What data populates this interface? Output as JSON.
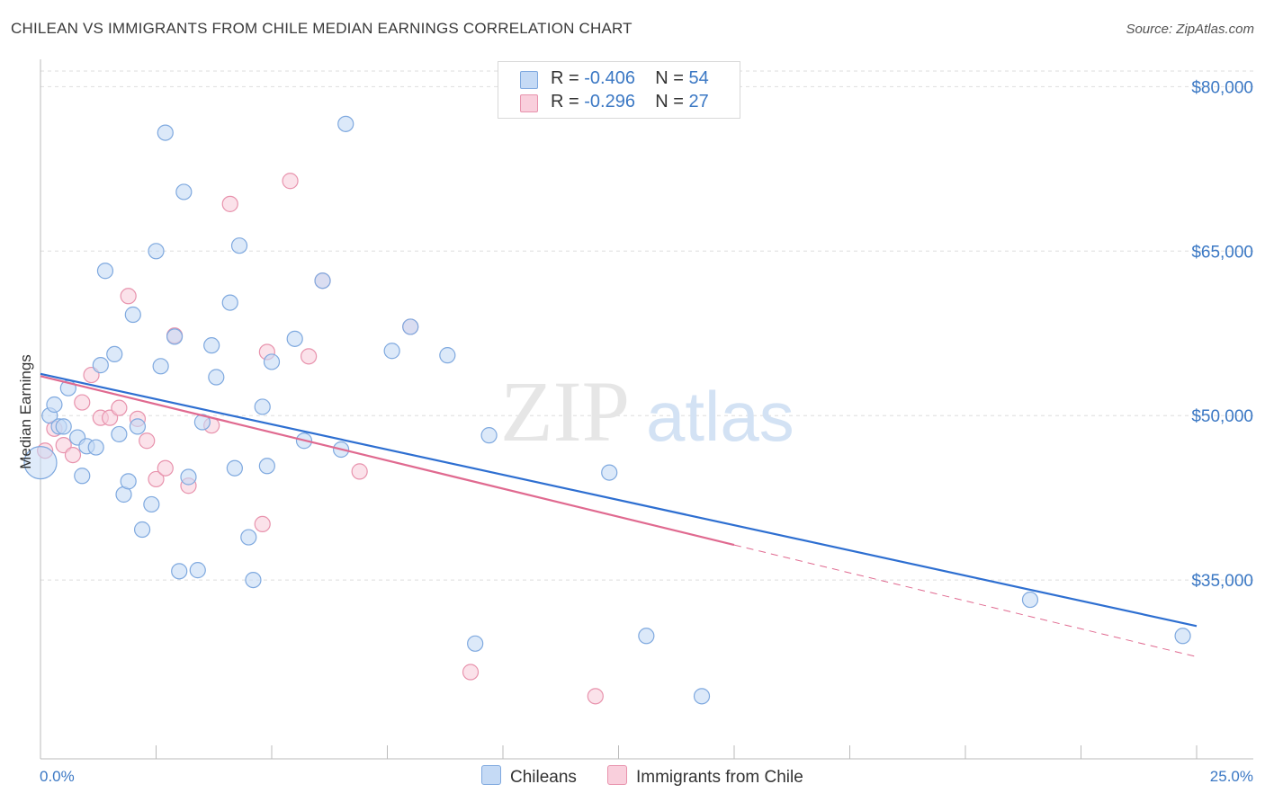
{
  "header": {
    "title": "CHILEAN VS IMMIGRANTS FROM CHILE MEDIAN EARNINGS CORRELATION CHART",
    "source": "Source: ZipAtlas.com"
  },
  "legend": {
    "rows": [
      {
        "r_label": "R = ",
        "r_value": "-0.406",
        "n_label": "N = ",
        "n_value": "54"
      },
      {
        "r_label": "R = ",
        "r_value": " -0.296",
        "n_label": "N = ",
        "n_value": "27"
      }
    ]
  },
  "bottom_legend": {
    "series1": "Chileans",
    "series2": "Immigrants from Chile"
  },
  "colors": {
    "blue_fill": "#c5daf5",
    "blue_stroke": "#7fa9df",
    "blue_line": "#2e6fd1",
    "pink_fill": "#f9cfdc",
    "pink_stroke": "#e893ad",
    "pink_line": "#e06a90",
    "tick_text": "#3b78c4",
    "grid": "#dddddd"
  },
  "chart_data": {
    "type": "scatter",
    "title": "CHILEAN VS IMMIGRANTS FROM CHILE MEDIAN EARNINGS CORRELATION CHART",
    "xlabel": "",
    "ylabel": "Median Earnings",
    "xlim": [
      0,
      25
    ],
    "ylim": [
      20000,
      82000
    ],
    "x_tick_labels": [
      "0.0%",
      "25.0%"
    ],
    "y_ticks": [
      35000,
      50000,
      65000,
      80000
    ],
    "y_tick_labels": [
      "$35,000",
      "$50,000",
      "$65,000",
      "$80,000"
    ],
    "grid": true,
    "legend_position": "top-center",
    "series": [
      {
        "name": "Chileans",
        "stats": {
          "r": -0.406,
          "n": 54
        },
        "points": [
          [
            0.0,
            45700
          ],
          [
            0.2,
            50000
          ],
          [
            0.3,
            51000
          ],
          [
            0.4,
            49000
          ],
          [
            0.5,
            49000
          ],
          [
            0.6,
            52500
          ],
          [
            0.8,
            48000
          ],
          [
            0.9,
            44500
          ],
          [
            1.0,
            47200
          ],
          [
            1.2,
            47100
          ],
          [
            1.3,
            54600
          ],
          [
            1.4,
            63200
          ],
          [
            1.6,
            55600
          ],
          [
            1.7,
            48300
          ],
          [
            1.8,
            42800
          ],
          [
            1.9,
            44000
          ],
          [
            2.0,
            59200
          ],
          [
            2.1,
            49000
          ],
          [
            2.2,
            39600
          ],
          [
            2.4,
            41900
          ],
          [
            2.5,
            65000
          ],
          [
            2.6,
            54500
          ],
          [
            2.7,
            75800
          ],
          [
            2.9,
            57200
          ],
          [
            3.0,
            35800
          ],
          [
            3.1,
            70400
          ],
          [
            3.2,
            44400
          ],
          [
            3.4,
            35900
          ],
          [
            3.5,
            49400
          ],
          [
            3.7,
            56400
          ],
          [
            3.8,
            53500
          ],
          [
            4.1,
            60300
          ],
          [
            4.2,
            45200
          ],
          [
            4.3,
            65500
          ],
          [
            4.5,
            38900
          ],
          [
            4.6,
            35000
          ],
          [
            4.8,
            50800
          ],
          [
            4.9,
            45400
          ],
          [
            5.0,
            54900
          ],
          [
            5.5,
            57000
          ],
          [
            5.7,
            47700
          ],
          [
            6.1,
            62300
          ],
          [
            6.5,
            46900
          ],
          [
            6.6,
            76600
          ],
          [
            7.6,
            55900
          ],
          [
            8.0,
            58100
          ],
          [
            8.8,
            55500
          ],
          [
            9.4,
            29200
          ],
          [
            9.7,
            48200
          ],
          [
            12.3,
            44800
          ],
          [
            13.1,
            29900
          ],
          [
            14.3,
            24400
          ],
          [
            21.4,
            33200
          ],
          [
            24.7,
            29900
          ]
        ]
      },
      {
        "name": "Immigrants from Chile",
        "stats": {
          "r": -0.296,
          "n": 27
        },
        "points": [
          [
            0.1,
            46800
          ],
          [
            0.3,
            48800
          ],
          [
            0.5,
            47300
          ],
          [
            0.7,
            46400
          ],
          [
            0.9,
            51200
          ],
          [
            1.1,
            53700
          ],
          [
            1.3,
            49800
          ],
          [
            1.5,
            49800
          ],
          [
            1.7,
            50700
          ],
          [
            1.9,
            60900
          ],
          [
            2.1,
            49700
          ],
          [
            2.3,
            47700
          ],
          [
            2.5,
            44200
          ],
          [
            2.7,
            45200
          ],
          [
            2.9,
            57300
          ],
          [
            3.2,
            43600
          ],
          [
            3.7,
            49100
          ],
          [
            4.1,
            69300
          ],
          [
            4.8,
            40100
          ],
          [
            4.9,
            55800
          ],
          [
            5.4,
            71400
          ],
          [
            5.8,
            55400
          ],
          [
            6.1,
            62300
          ],
          [
            6.9,
            44900
          ],
          [
            8.0,
            58100
          ],
          [
            9.3,
            26600
          ],
          [
            12.0,
            24400
          ]
        ]
      }
    ],
    "trend_lines": [
      {
        "series": "Chileans",
        "x": [
          0.0,
          25.0
        ],
        "y": [
          53800,
          30800
        ]
      },
      {
        "series": "Immigrants from Chile",
        "x": [
          0.0,
          15.0
        ],
        "y": [
          53600,
          38200
        ]
      },
      {
        "series": "Immigrants from Chile",
        "style": "dashed",
        "x": [
          15.0,
          25.0
        ],
        "y": [
          38200,
          28000
        ]
      }
    ]
  }
}
